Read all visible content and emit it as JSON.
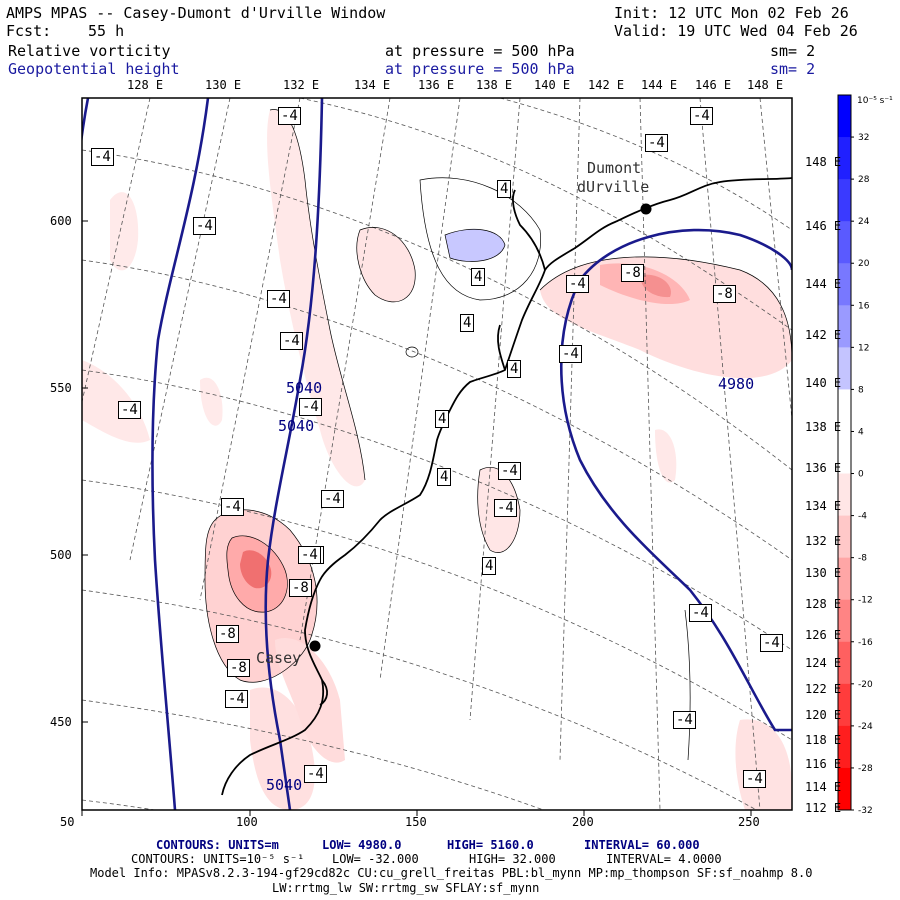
{
  "header": {
    "title": "AMPS MPAS -- Casey-Dumont d'Urville Window",
    "init": "Init: 12 UTC Mon 02 Feb 26",
    "fcst_label": "Fcst:",
    "fcst_value": "55 h",
    "valid": "Valid: 19 UTC Wed 04 Feb 26",
    "field1": "Relative vorticity",
    "field1_level": "at pressure =  500 hPa",
    "field1_sm": "sm= 2",
    "field2": "Geopotential height",
    "field2_level": "at pressure =  500 hPa",
    "field2_sm": "sm= 2"
  },
  "axes": {
    "x_ticks": [
      "50",
      "100",
      "150",
      "200",
      "250"
    ],
    "y_ticks": [
      "600",
      "550",
      "500",
      "450"
    ],
    "top_lon": [
      "128 E",
      "130 E",
      "132 E",
      "134 E",
      "136 E",
      "138 E",
      "140 E",
      "142 E",
      "144 E",
      "146 E",
      "148 E"
    ],
    "right_lat": [
      "148 E",
      "146 E",
      "144 E",
      "142 E",
      "140 E",
      "138 E",
      "136 E",
      "134 E",
      "132 E",
      "130 E",
      "128 E",
      "126 E",
      "124 E",
      "122 E",
      "120 E",
      "118 E",
      "116 E",
      "114 E",
      "112 E"
    ]
  },
  "colorbar": {
    "unit": "10⁻⁵ s⁻¹",
    "labels": [
      "32",
      "28",
      "24",
      "20",
      "16",
      "12",
      "8",
      "4",
      "0",
      "-4",
      "-8",
      "-12",
      "-16",
      "-20",
      "-24",
      "-28",
      "-32"
    ],
    "colors": [
      "#0000ff",
      "#2020ff",
      "#3a3aff",
      "#5a5aff",
      "#7878ff",
      "#9a9aff",
      "#c4c4ff",
      "#ffffff",
      "#ffffff",
      "#ffe6e6",
      "#ffc8c8",
      "#ffa6a6",
      "#ff8484",
      "#ff6060",
      "#ff3c3c",
      "#ff1e1e",
      "#ff0000"
    ]
  },
  "places": {
    "dumont1": "Dumont",
    "dumont2": "dUrville",
    "casey": "Casey"
  },
  "contour_labels": {
    "geo": [
      "5040",
      "5040",
      "5040",
      "4980"
    ],
    "vort": [
      "-4",
      "-4",
      "-4",
      "-4",
      "-4",
      "4",
      "4",
      "4",
      "4",
      "-4",
      "-4",
      "-4",
      "-4",
      "-4",
      "-8",
      "-8",
      "-4",
      "-4",
      "-4",
      "-4",
      "-4",
      "4",
      "-4",
      "-8",
      "-8",
      "-4",
      "-4",
      "-8",
      "-4",
      "-4",
      "4",
      "4",
      "-4",
      "-4",
      "-4"
    ]
  },
  "footer": {
    "line1_label": "CONTOURS: UNITS=m",
    "line1_low": "LOW=  4980.0",
    "line1_high": "HIGH=  5160.0",
    "line1_int": "INTERVAL=  60.000",
    "line2_label": "CONTOURS: UNITS=10⁻⁵ s⁻¹",
    "line2_low": "LOW= -32.000",
    "line2_high": "HIGH=  32.000",
    "line2_int": "INTERVAL=  4.0000",
    "model_info": "Model Info: MPASv8.2.3-194-gf29cd82c CU:cu_grell_freitas PBL:bl_mynn MP:mp_thompson SF:sf_noahmp 8.0",
    "model_info2": "LW:rrtmg_lw SW:rrtmg_sw SFLAY:sf_mynn"
  },
  "colors": {
    "geo_contour": "#1a1a8c",
    "coast": "#000000",
    "grid": "#555555"
  }
}
